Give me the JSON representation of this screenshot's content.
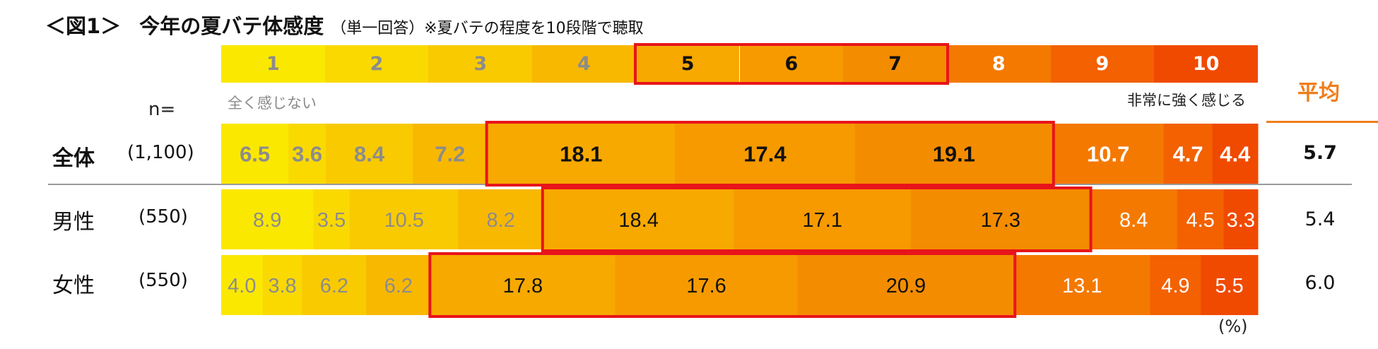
{
  "title": {
    "main": "＜図1＞",
    "topic": "今年の夏バテ体感度",
    "sub": "（単一回答）※夏バテの程度を10段階で聴取"
  },
  "scale": {
    "levels": [
      "1",
      "2",
      "3",
      "4",
      "5",
      "6",
      "7",
      "8",
      "9",
      "10"
    ],
    "min_label": "全く感じない",
    "max_label": "非常に強く感じる"
  },
  "n_label": "n=",
  "avg_header": "平均",
  "unit_note": "(%)",
  "colors": {
    "level_colors": [
      "#fbe800",
      "#fad900",
      "#f9ca00",
      "#f8b800",
      "#f7a900",
      "#f69a00",
      "#f48c00",
      "#f47900",
      "#f36100",
      "#f04a00"
    ],
    "highlight_border": "#e8141b",
    "accent_orange": "#f07d1a"
  },
  "rows": [
    {
      "label": "全体",
      "n": "(1,100)",
      "avg": "5.7"
    },
    {
      "label": "男性",
      "n": "(550)",
      "avg": "5.4"
    },
    {
      "label": "女性",
      "n": "(550)",
      "avg": "6.0"
    }
  ],
  "chart_data": {
    "type": "bar",
    "orientation": "horizontal-stacked-100",
    "categories": [
      "全体",
      "男性",
      "女性"
    ],
    "series": [
      {
        "name": "1",
        "values": [
          6.5,
          8.9,
          4.0
        ]
      },
      {
        "name": "2",
        "values": [
          3.6,
          3.5,
          3.8
        ]
      },
      {
        "name": "3",
        "values": [
          8.4,
          10.5,
          6.2
        ]
      },
      {
        "name": "4",
        "values": [
          7.2,
          8.2,
          6.2
        ]
      },
      {
        "name": "5",
        "values": [
          18.1,
          18.4,
          17.8
        ]
      },
      {
        "name": "6",
        "values": [
          17.4,
          17.1,
          17.6
        ]
      },
      {
        "name": "7",
        "values": [
          19.1,
          17.3,
          20.9
        ]
      },
      {
        "name": "8",
        "values": [
          10.7,
          8.4,
          13.1
        ]
      },
      {
        "name": "9",
        "values": [
          4.7,
          4.5,
          4.9
        ]
      },
      {
        "name": "10",
        "values": [
          4.4,
          3.3,
          5.5
        ]
      }
    ],
    "unit": "%",
    "highlighted_levels": [
      "5",
      "6",
      "7"
    ]
  }
}
